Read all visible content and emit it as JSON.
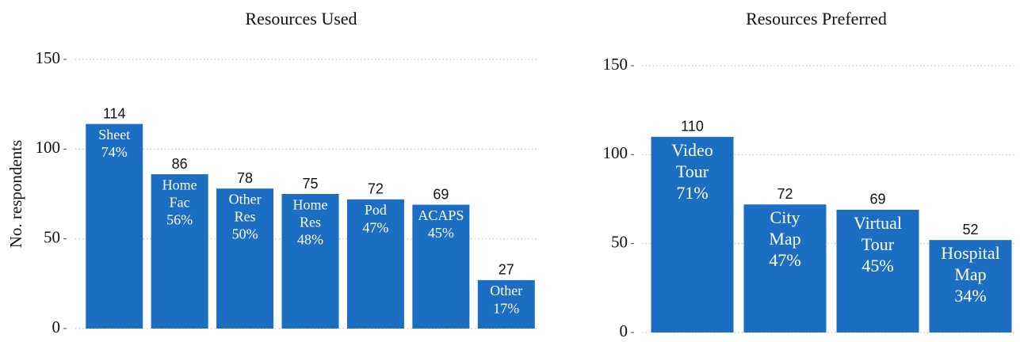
{
  "chart_data": [
    {
      "type": "bar",
      "title": "Resources Used",
      "ylabel": "No. respondents",
      "categories": [
        "Sheet",
        "Home Fac",
        "Other Res",
        "Home Res",
        "Pod",
        "ACAPS",
        "Other"
      ],
      "values": [
        114,
        86,
        78,
        75,
        72,
        69,
        27
      ],
      "percent_labels": [
        "74%",
        "56%",
        "50%",
        "48%",
        "47%",
        "45%",
        "17%"
      ],
      "color": "#1b6ec2",
      "ylim": [
        0,
        150
      ],
      "yticks": [
        0,
        50,
        100,
        150
      ],
      "grid": true
    },
    {
      "type": "bar",
      "title": "Resources Preferred",
      "categories": [
        "Video Tour",
        "City Map",
        "Virtual Tour",
        "Hospital Map"
      ],
      "values": [
        110,
        72,
        69,
        52
      ],
      "percent_labels": [
        "71%",
        "47%",
        "45%",
        "34%"
      ],
      "color": "#1b6ec2",
      "ylim": [
        0,
        150
      ],
      "yticks": [
        0,
        50,
        100,
        150
      ],
      "grid": true
    }
  ]
}
